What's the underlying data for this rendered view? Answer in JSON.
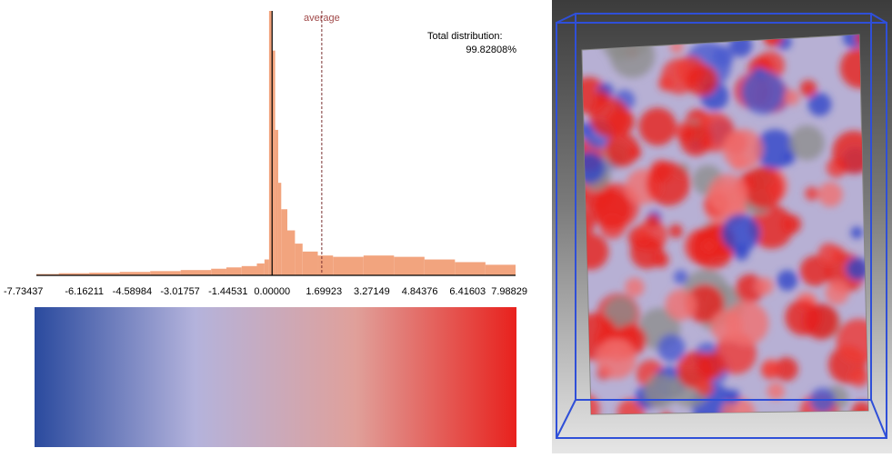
{
  "chart_data": {
    "type": "histogram",
    "bins": [
      -7.73437,
      -7,
      -6,
      -5,
      -4,
      -3,
      -2,
      -1.5,
      -1,
      -0.5,
      -0.25,
      -0.1,
      0,
      0.1,
      0.2,
      0.3,
      0.5,
      0.75,
      1,
      1.5,
      2,
      3,
      4,
      5,
      6,
      7,
      7.98829
    ],
    "values": [
      0.5,
      0.8,
      1,
      1.3,
      1.6,
      2,
      2.5,
      3,
      3.5,
      4.5,
      6,
      100,
      85,
      55,
      35,
      25,
      17,
      12,
      9,
      7.5,
      7,
      7.5,
      7,
      6,
      5,
      4
    ],
    "color": "#f2a47e",
    "xlim": [
      -7.73437,
      7.98829
    ],
    "ylim": [
      0,
      100
    ],
    "xticks": [
      -7.73437,
      -6.16211,
      -4.58984,
      -3.01757,
      -1.44531,
      {
        "value": 0,
        "label": "0.00000"
      },
      1.69923,
      3.27149,
      4.84376,
      6.41603,
      7.98829
    ],
    "average": 1.63,
    "average_label": "average",
    "total_label": "Total distribution:",
    "total_value": "99.82808%",
    "colorbar": [
      "#2a4a9e",
      "#b4b3dc",
      "#e0a09a",
      "#e8211d"
    ]
  }
}
